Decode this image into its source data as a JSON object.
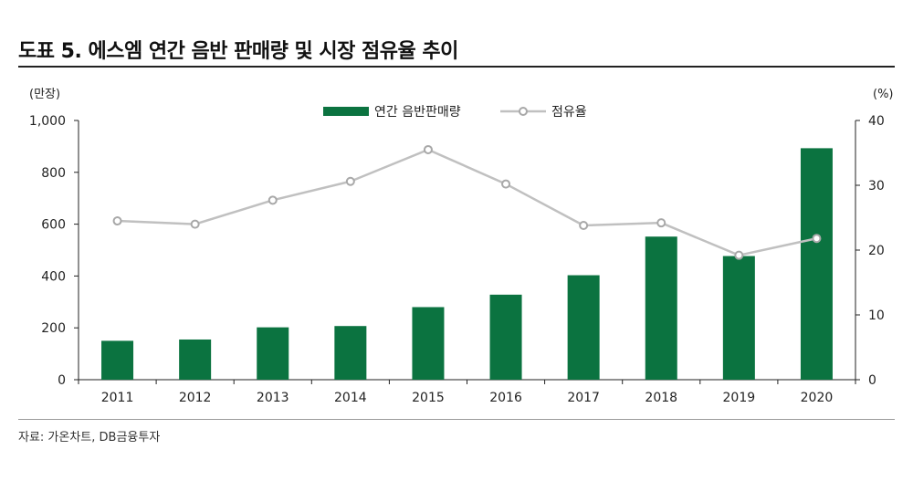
{
  "header": {
    "title": "도표 5. 에스엠 연간 음반 판매량 및 시장 점유율 추이"
  },
  "footer": {
    "source": "자료: 가온차트, DB금융투자"
  },
  "colors": {
    "bar": "#0b7340",
    "line": "#c0c0c0",
    "marker_fill": "#ffffff",
    "axis": "#222222"
  },
  "chart_data": {
    "type": "bar",
    "categories": [
      "2011",
      "2012",
      "2013",
      "2014",
      "2015",
      "2016",
      "2017",
      "2018",
      "2019",
      "2020"
    ],
    "series": [
      {
        "name": "연간 음반판매량",
        "type": "bar",
        "axis": "left",
        "values": [
          150,
          155,
          202,
          207,
          280,
          328,
          403,
          552,
          477,
          893
        ]
      },
      {
        "name": "점유율",
        "type": "line",
        "axis": "right",
        "values": [
          24.5,
          24.0,
          27.7,
          30.6,
          35.5,
          30.2,
          23.8,
          24.2,
          19.2,
          21.8
        ]
      }
    ],
    "y_left": {
      "unit_label": "(만장)",
      "range": [
        0,
        1000
      ],
      "ticks": [
        "0",
        "200",
        "400",
        "600",
        "800",
        "1,000"
      ]
    },
    "y_right": {
      "unit_label": "(%)",
      "range": [
        0,
        40
      ],
      "ticks": [
        "0",
        "10",
        "20",
        "30",
        "40"
      ]
    },
    "legend_position": "top-center",
    "grid": false
  }
}
